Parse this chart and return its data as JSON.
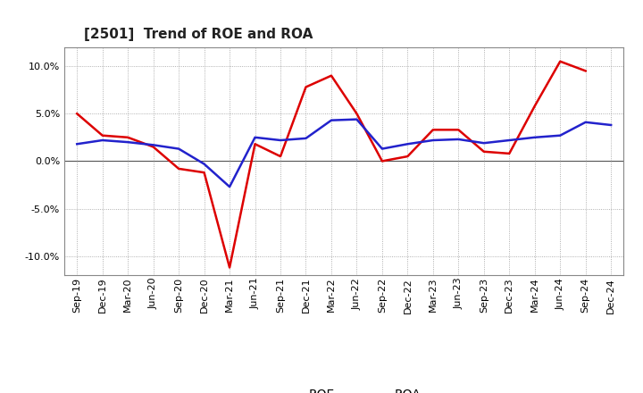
{
  "title": "[2501]  Trend of ROE and ROA",
  "x_labels": [
    "Sep-19",
    "Dec-19",
    "Mar-20",
    "Jun-20",
    "Sep-20",
    "Dec-20",
    "Mar-21",
    "Jun-21",
    "Sep-21",
    "Dec-21",
    "Mar-22",
    "Jun-22",
    "Sep-22",
    "Dec-22",
    "Mar-23",
    "Jun-23",
    "Sep-23",
    "Dec-23",
    "Mar-24",
    "Jun-24",
    "Sep-24",
    "Dec-24"
  ],
  "roe": [
    5.0,
    2.7,
    2.5,
    1.5,
    -0.8,
    -1.2,
    -11.2,
    1.8,
    0.5,
    7.8,
    9.0,
    5.0,
    0.0,
    0.5,
    3.3,
    3.3,
    1.0,
    0.8,
    5.8,
    10.5,
    9.5,
    null
  ],
  "roa": [
    1.8,
    2.2,
    2.0,
    1.7,
    1.3,
    -0.3,
    -2.7,
    2.5,
    2.2,
    2.4,
    4.3,
    4.4,
    1.3,
    1.8,
    2.2,
    2.3,
    1.9,
    2.2,
    2.5,
    2.7,
    4.1,
    3.8
  ],
  "roe_color": "#dd0000",
  "roa_color": "#2222cc",
  "background_color": "#ffffff",
  "grid_color": "#999999",
  "ylim": [
    -12,
    12
  ],
  "yticks": [
    -10,
    -5,
    0,
    5,
    10
  ],
  "title_fontsize": 11,
  "axis_fontsize": 8,
  "legend_fontsize": 10
}
